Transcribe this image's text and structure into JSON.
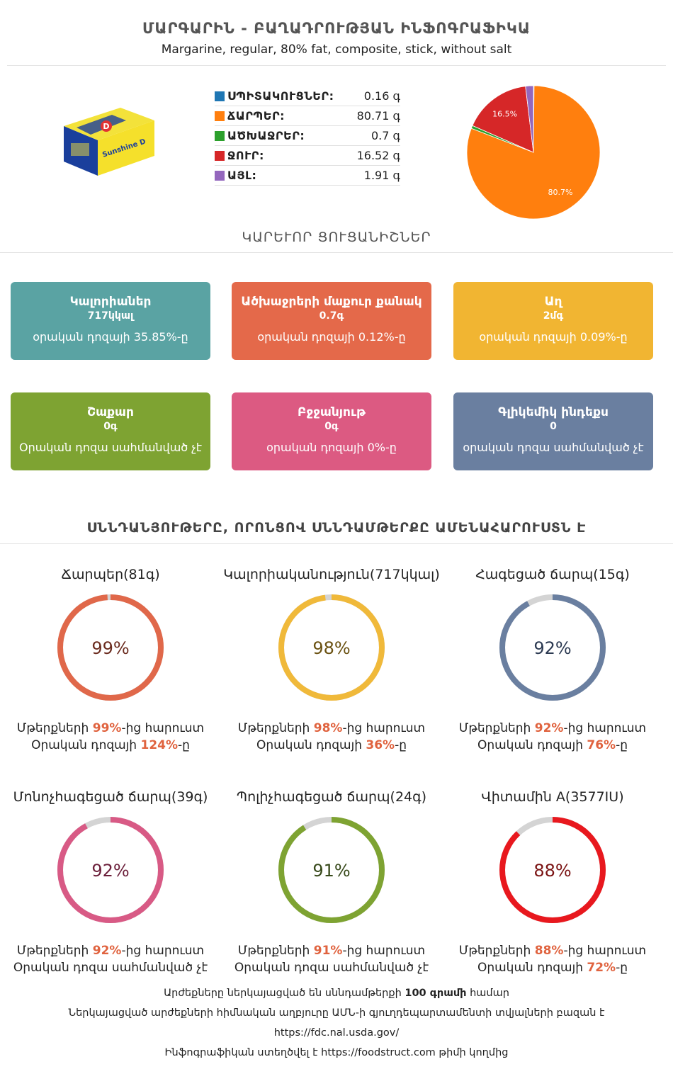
{
  "header": {
    "title": "ՄԱՐԳԱՐԻՆ - ԲԱՂԱԴՐՈՒԹՅԱՆ ԻՆՖՈԳՐԱՖԻԿԱ",
    "subtitle": "Margarine, regular, 80% fat, composite, stick, without salt"
  },
  "composition": [
    {
      "name": "ՍՊԻՏԱԿՈՒՑՆԵՐ:",
      "value": "0.16 գ",
      "color": "#1f77b4"
    },
    {
      "name": "ՃԱՐՊԵՐ:",
      "value": "80.71 գ",
      "color": "#ff7f0e"
    },
    {
      "name": "ԱԾԽԱՋՐԵՐ:",
      "value": "0.7 գ",
      "color": "#2ca02c"
    },
    {
      "name": "ՋՈՒՐ:",
      "value": "16.52 գ",
      "color": "#d62728"
    },
    {
      "name": "ԱՅԼ:",
      "value": "1.91 գ",
      "color": "#9467bd"
    }
  ],
  "chart_data": {
    "type": "pie",
    "categories": [
      "ՍՊԻՏԱԿՈՒՑՆԵՐ",
      "ՃԱՐՊԵՐ",
      "ԱԾԽԱՋՐԵՐ",
      "ՋՈՒՐ",
      "ԱՅԼ"
    ],
    "values": [
      0.16,
      80.71,
      0.7,
      16.52,
      1.91
    ],
    "colors": [
      "#1f77b4",
      "#ff7f0e",
      "#2ca02c",
      "#d62728",
      "#9467bd"
    ],
    "data_labels": [
      "",
      "80.7%",
      "",
      "16.5%",
      ""
    ]
  },
  "key_title": "ԿԱՐԵՒՈՐ ՑՈՒՑԱՆԻՇՆԵՐ",
  "cards": [
    {
      "title": "Կալորիաներ",
      "value": "717կկալ",
      "note": "օրական դոզայի 35.85%-ը",
      "color": "#5aa3a3"
    },
    {
      "title": "Ածխաջրերի մաքուր քանակ",
      "value": "0.7գ",
      "note": "օրական դոզայի 0.12%-ը",
      "color": "#e4694a"
    },
    {
      "title": "Աղ",
      "value": "2մգ",
      "note": "օրական դոզայի 0.09%-ը",
      "color": "#f1b532"
    },
    {
      "title": "Շաքար",
      "value": "0գ",
      "note": "Օրական դոզա սահմանված չէ",
      "color": "#7ea332"
    },
    {
      "title": "Բջջանյութ",
      "value": "0գ",
      "note": "օրական դոզայի 0%-ը",
      "color": "#dc5a82"
    },
    {
      "title": "Գլիկեմիկ ինդեքս",
      "value": "0",
      "note": "օրական դոզա սահմանված չէ",
      "color": "#6a7fa0"
    }
  ],
  "rich_title": "ՍՆՆԴԱՆՅՈՒԹԵՐԸ, ՈՐՈՆՑՈՎ ՍՆՆԴԱՄԹԵՐՔԸ ԱՄԵՆԱՀԱՐՈՒՍՏՆ Է",
  "rings": [
    {
      "title": "Ճարպեր(81գ)",
      "percent": 99,
      "label": "99%",
      "line1_pre": "Մթերքների ",
      "line1_val": "99%",
      "line1_post": "-ից հարուստ",
      "line2_pre": "Օրական դոզայի ",
      "line2_val": "124%",
      "line2_post": "-ը",
      "color": "#e0684a",
      "text_color": "#6b2c1f"
    },
    {
      "title": "Կալորիականություն(717կկալ)",
      "percent": 98,
      "label": "98%",
      "line1_pre": "Մթերքների ",
      "line1_val": "98%",
      "line1_post": "-ից հարուստ",
      "line2_pre": "Օրական դոզայի ",
      "line2_val": "36%",
      "line2_post": "-ը",
      "color": "#f0b93a",
      "text_color": "#6b5212"
    },
    {
      "title": "Հագեցած ճարպ(15գ)",
      "percent": 92,
      "label": "92%",
      "line1_pre": "Մթերքների ",
      "line1_val": "92%",
      "line1_post": "-ից հարուստ",
      "line2_pre": "Օրական դոզայի ",
      "line2_val": "76%",
      "line2_post": "-ը",
      "color": "#6a7fa0",
      "text_color": "#2c3a52"
    },
    {
      "title": "Մոնոչհագեցած ճարպ(39գ)",
      "percent": 92,
      "label": "92%",
      "line1_pre": "Մթերքների ",
      "line1_val": "92%",
      "line1_post": "-ից հարուստ",
      "line2_pre": "Օրական դոզա սահմանված չէ",
      "line2_val": "",
      "line2_post": "",
      "color": "#d85a85",
      "text_color": "#6b1f3a"
    },
    {
      "title": "Պոլիչհագեցած ճարպ(24գ)",
      "percent": 91,
      "label": "91%",
      "line1_pre": "Մթերքների ",
      "line1_val": "91%",
      "line1_post": "-ից հարուստ",
      "line2_pre": "Օրական դոզա սահմանված չէ",
      "line2_val": "",
      "line2_post": "",
      "color": "#7ea332",
      "text_color": "#37491a"
    },
    {
      "title": "Վիտամին A(3577IU)",
      "percent": 88,
      "label": "88%",
      "line1_pre": "Մթերքների ",
      "line1_val": "88%",
      "line1_post": "-ից հարուստ",
      "line2_pre": "Օրական դոզայի ",
      "line2_val": "72%",
      "line2_post": "-ը",
      "color": "#e8181e",
      "text_color": "#7a1212"
    }
  ],
  "footer": {
    "line1_pre": "Արժեքները ներկայացված են սննդամթերքի ",
    "line1_bold": "100 գրամի",
    "line1_post": " համար",
    "line2": "Ներկայացված արժեքների հիմնական աղբյուրը ԱՄՆ-ի գյուղդեպարտամենտի տվյալների բազան է",
    "line3": "https://fdc.nal.usda.gov/",
    "line4_pre": "Ինֆոգրաֆիկան ստեղծվել է ",
    "line4_link": "https://foodstruct.com",
    "line4_post": " թիմի կողմից"
  },
  "product_image": {
    "brand_text": "Sunshine D"
  }
}
